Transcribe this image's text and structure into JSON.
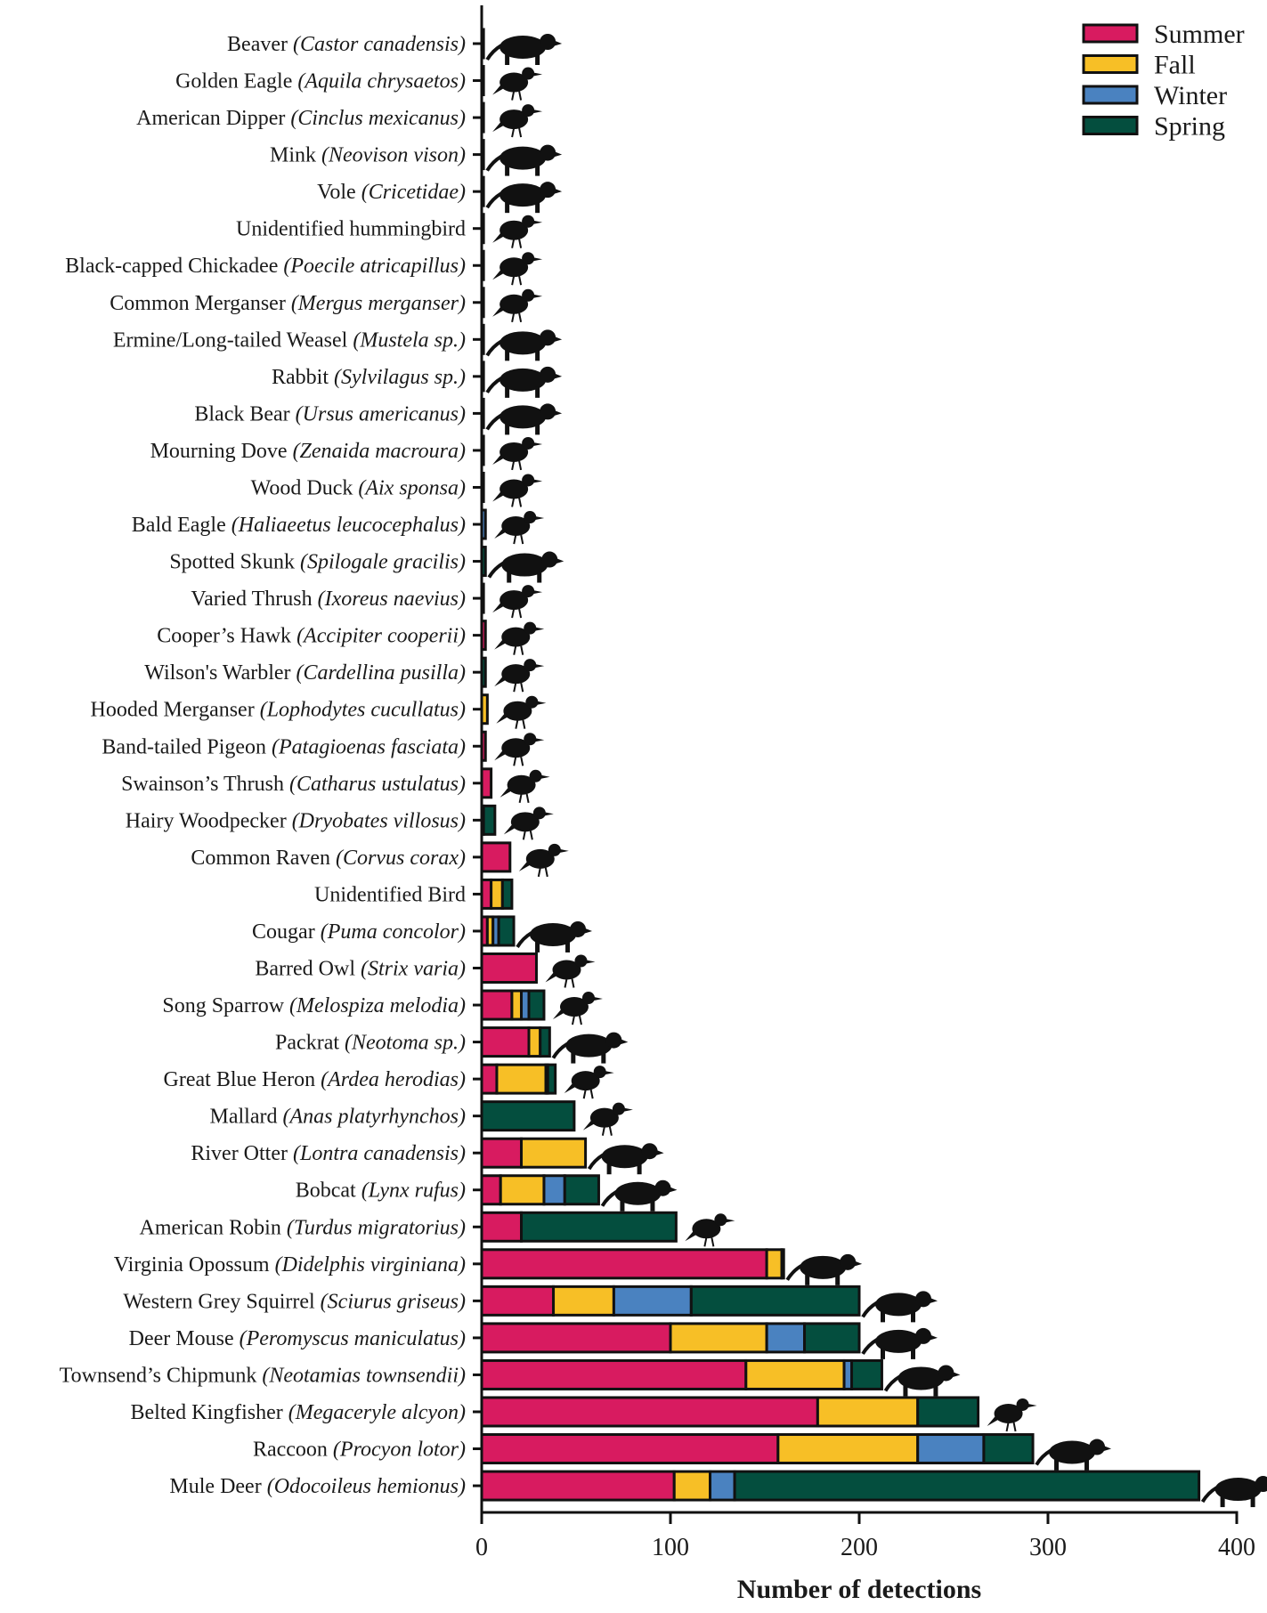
{
  "chart_data": {
    "type": "bar",
    "orientation": "horizontal",
    "stacked": true,
    "title": "",
    "xlabel": "Number of detections",
    "ylabel": "",
    "xlim": [
      0,
      400
    ],
    "xticks": [
      0,
      100,
      200,
      300,
      400
    ],
    "grid": false,
    "legend": {
      "placement": "top-right",
      "entries": [
        "Summer",
        "Fall",
        "Winter",
        "Spring"
      ]
    },
    "series_colors": {
      "Summer": "#D81B60",
      "Fall": "#F7BF26",
      "Winter": "#4A82C0",
      "Spring": "#044E3E"
    },
    "categories": [
      {
        "common": "Beaver",
        "sci": "(Castor canadensis)",
        "icon": "beaver-icon"
      },
      {
        "common": "Golden Eagle",
        "sci": "(Aquila chrysaetos)",
        "icon": "golden-eagle-icon"
      },
      {
        "common": "American Dipper",
        "sci": "(Cinclus mexicanus)",
        "icon": "american-dipper-icon"
      },
      {
        "common": "Mink",
        "sci": "(Neovison vison)",
        "icon": "mink-icon"
      },
      {
        "common": "Vole",
        "sci": "(Cricetidae)",
        "icon": "vole-icon"
      },
      {
        "common": "Unidentified hummingbird",
        "sci": "",
        "icon": "hummingbird-icon"
      },
      {
        "common": "Black-capped Chickadee",
        "sci": "(Poecile atricapillus)",
        "icon": "chickadee-icon"
      },
      {
        "common": "Common Merganser",
        "sci": "(Mergus merganser)",
        "icon": "common-merganser-icon"
      },
      {
        "common": "Ermine/Long-tailed Weasel",
        "sci": "(Mustela sp.)",
        "icon": "weasel-icon"
      },
      {
        "common": "Rabbit",
        "sci": "(Sylvilagus sp.)",
        "icon": "rabbit-icon"
      },
      {
        "common": "Black Bear",
        "sci": "(Ursus americanus)",
        "icon": "black-bear-icon"
      },
      {
        "common": "Mourning Dove",
        "sci": "(Zenaida macroura)",
        "icon": "mourning-dove-icon"
      },
      {
        "common": "Wood Duck",
        "sci": "(Aix sponsa)",
        "icon": "wood-duck-icon"
      },
      {
        "common": "Bald Eagle",
        "sci": "(Haliaeetus leucocephalus)",
        "icon": "bald-eagle-icon"
      },
      {
        "common": "Spotted Skunk",
        "sci": "(Spilogale gracilis)",
        "icon": "spotted-skunk-icon"
      },
      {
        "common": "Varied Thrush",
        "sci": "(Ixoreus naevius)",
        "icon": "varied-thrush-icon"
      },
      {
        "common": "Cooper’s Hawk",
        "sci": "(Accipiter cooperii)",
        "icon": "coopers-hawk-icon"
      },
      {
        "common": "Wilson's Warbler",
        "sci": "(Cardellina pusilla)",
        "icon": "wilsons-warbler-icon"
      },
      {
        "common": "Hooded Merganser",
        "sci": "(Lophodytes cucullatus)",
        "icon": "hooded-merganser-icon"
      },
      {
        "common": "Band-tailed Pigeon",
        "sci": "(Patagioenas fasciata)",
        "icon": "pigeon-icon"
      },
      {
        "common": "Swainson’s Thrush",
        "sci": "(Catharus ustulatus)",
        "icon": "swainsons-thrush-icon"
      },
      {
        "common": "Hairy Woodpecker",
        "sci": "(Dryobates villosus)",
        "icon": "woodpecker-icon"
      },
      {
        "common": "Common Raven",
        "sci": "(Corvus corax)",
        "icon": "raven-icon"
      },
      {
        "common": "Unidentified Bird",
        "sci": "",
        "icon": ""
      },
      {
        "common": "Cougar",
        "sci": "(Puma concolor)",
        "icon": "cougar-icon"
      },
      {
        "common": "Barred Owl",
        "sci": "(Strix varia)",
        "icon": "barred-owl-icon"
      },
      {
        "common": "Song Sparrow",
        "sci": "(Melospiza melodia)",
        "icon": "song-sparrow-icon"
      },
      {
        "common": "Packrat",
        "sci": "(Neotoma sp.)",
        "icon": "packrat-icon"
      },
      {
        "common": "Great Blue Heron",
        "sci": "(Ardea herodias)",
        "icon": "heron-icon"
      },
      {
        "common": "Mallard",
        "sci": "(Anas platyrhynchos)",
        "icon": "mallard-icon"
      },
      {
        "common": "River Otter",
        "sci": "(Lontra canadensis)",
        "icon": "river-otter-icon"
      },
      {
        "common": "Bobcat",
        "sci": "(Lynx rufus)",
        "icon": "bobcat-icon"
      },
      {
        "common": "American Robin",
        "sci": "(Turdus migratorius)",
        "icon": "robin-icon"
      },
      {
        "common": "Virginia Opossum",
        "sci": "(Didelphis virginiana)",
        "icon": "opossum-icon"
      },
      {
        "common": "Western Grey Squirrel",
        "sci": "(Sciurus griseus)",
        "icon": "squirrel-icon"
      },
      {
        "common": "Deer Mouse",
        "sci": "(Peromyscus maniculatus)",
        "icon": "deer-mouse-icon"
      },
      {
        "common": "Townsend’s Chipmunk",
        "sci": "(Neotamias townsendii)",
        "icon": "chipmunk-icon"
      },
      {
        "common": "Belted Kingfisher",
        "sci": "(Megaceryle alcyon)",
        "icon": "kingfisher-icon"
      },
      {
        "common": "Raccoon",
        "sci": "(Procyon lotor)",
        "icon": "raccoon-icon"
      },
      {
        "common": "Mule Deer",
        "sci": "(Odocoileus hemionus)",
        "icon": "mule-deer-icon"
      }
    ],
    "series": [
      {
        "name": "Summer",
        "values": [
          0,
          0,
          0,
          0,
          0,
          0,
          0,
          0,
          0,
          0,
          0,
          1,
          0,
          0,
          0,
          0,
          2,
          0,
          0,
          2,
          5,
          1,
          15,
          5,
          3,
          29,
          16,
          25,
          8,
          0,
          21,
          10,
          21,
          151,
          38,
          100,
          140,
          178,
          157,
          102
        ]
      },
      {
        "name": "Fall",
        "values": [
          0,
          0,
          0,
          0,
          0,
          0,
          0,
          0,
          0,
          0,
          1,
          0,
          0,
          0,
          0,
          1,
          0,
          0,
          3,
          0,
          0,
          0,
          0,
          6,
          3,
          0,
          5,
          6,
          26,
          0,
          34,
          23,
          0,
          8,
          32,
          51,
          52,
          53,
          74,
          19
        ]
      },
      {
        "name": "Winter",
        "values": [
          0,
          0,
          0,
          0,
          0,
          0,
          0,
          0,
          0,
          0,
          0,
          0,
          0,
          2,
          0,
          0,
          0,
          0,
          0,
          0,
          0,
          0,
          0,
          0,
          3,
          0,
          4,
          0,
          1,
          0,
          0,
          11,
          0,
          0,
          41,
          20,
          4,
          0,
          35,
          13
        ]
      },
      {
        "name": "Spring",
        "values": [
          1,
          1,
          1,
          1,
          1,
          1,
          1,
          1,
          1,
          1,
          0,
          0,
          1,
          0,
          2,
          0,
          0,
          2,
          0,
          0,
          0,
          6,
          0,
          5,
          8,
          0,
          8,
          5,
          4,
          49,
          0,
          18,
          82,
          1,
          89,
          29,
          16,
          32,
          26,
          246
        ]
      }
    ]
  }
}
